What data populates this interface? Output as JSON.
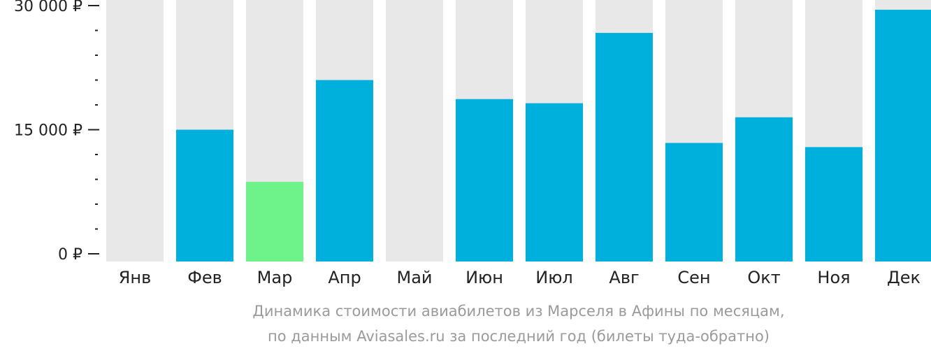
{
  "chart_data": {
    "type": "bar",
    "categories": [
      "Янв",
      "Фев",
      "Мар",
      "Апр",
      "Май",
      "Июн",
      "Июл",
      "Авг",
      "Сен",
      "Окт",
      "Ноя",
      "Дек"
    ],
    "values": [
      null,
      15000,
      8700,
      21000,
      null,
      18700,
      18200,
      26700,
      13400,
      16500,
      12900,
      29500
    ],
    "highlight_index": 2,
    "ylim": [
      0,
      30000
    ],
    "yticks": [
      {
        "value": 0,
        "label": "0 ₽"
      },
      {
        "value": 15000,
        "label": "15 000 ₽"
      },
      {
        "value": 30000,
        "label": "30 000 ₽"
      }
    ],
    "minor_tick_step": 3000,
    "caption_lines": [
      "Динамика стоимости авиабилетов из Марселя в Афины по месяцам,",
      "по данным Aviasales.ru за последний год (билеты туда-обратно)"
    ],
    "colors": {
      "bar": "#00b0dc",
      "highlight": "#6ef28a",
      "background_bar": "#e8e8e8",
      "axis": "#222222",
      "caption": "#9a9a9a"
    }
  }
}
